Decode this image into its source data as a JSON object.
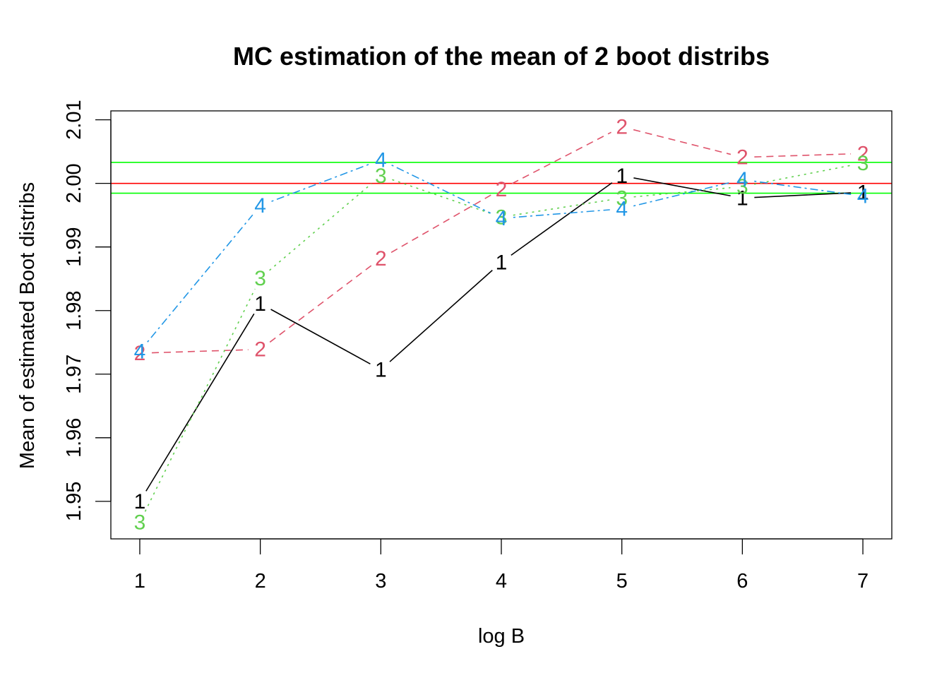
{
  "chart_data": {
    "type": "line",
    "title": "MC estimation of the mean of 2 boot distribs",
    "xlabel": "log B",
    "ylabel": "Mean of estimated Boot distribs",
    "x": [
      1,
      2,
      3,
      4,
      5,
      6,
      7
    ],
    "xlim": [
      0.76,
      7.24
    ],
    "ylim": [
      1.9441,
      2.0114
    ],
    "xticks": [
      "1",
      "2",
      "3",
      "4",
      "5",
      "6",
      "7"
    ],
    "yticks": [
      "1.95",
      "1.96",
      "1.97",
      "1.98",
      "1.99",
      "2.00",
      "2.01"
    ],
    "grid": false,
    "series": [
      {
        "name": "1",
        "color": "#000000",
        "dash": "",
        "values": [
          1.95,
          1.9811,
          1.9707,
          1.9876,
          2.0012,
          1.9977,
          1.9986
        ]
      },
      {
        "name": "2",
        "color": "#DF536B",
        "dash": "10,7",
        "values": [
          1.9733,
          1.9739,
          1.9882,
          1.9991,
          2.0089,
          2.0041,
          2.0047
        ]
      },
      {
        "name": "3",
        "color": "#61D04F",
        "dash": "3,6",
        "values": [
          1.9467,
          1.9851,
          2.0012,
          1.9947,
          1.9977,
          1.9995,
          2.0032
        ]
      },
      {
        "name": "4",
        "color": "#2297E6",
        "dash": "3,5,11,5",
        "values": [
          1.9736,
          1.9965,
          2.0037,
          1.9945,
          1.996,
          2.0006,
          1.998
        ]
      }
    ],
    "reference_lines": [
      {
        "value": 2.0,
        "color": "#FF0000"
      },
      {
        "value": 2.0033,
        "color": "#00FF00"
      },
      {
        "value": 1.99845,
        "color": "#00FF00"
      }
    ]
  }
}
